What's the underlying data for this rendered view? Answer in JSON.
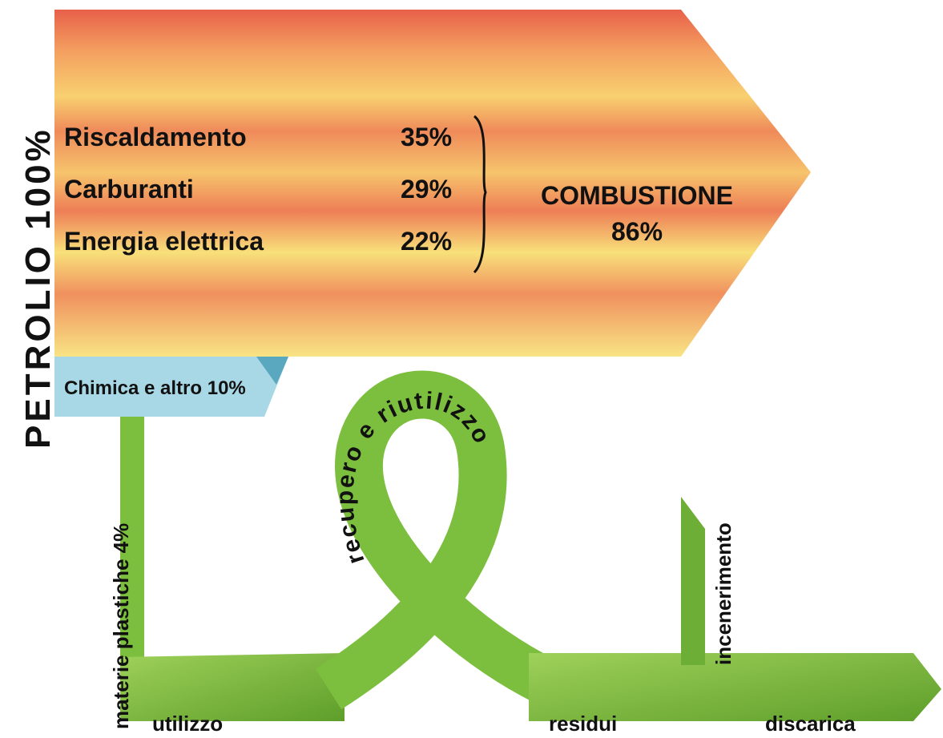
{
  "side_label": "PETROLIO 100%",
  "combustion": {
    "items": [
      {
        "label": "Riscaldamento",
        "percent": "35%"
      },
      {
        "label": "Carburanti",
        "percent": "29%"
      },
      {
        "label": "Energia elettrica",
        "percent": "22%"
      }
    ],
    "total_label": "COMBUSTIONE",
    "total_percent": "86%"
  },
  "chemistry": "Chimica e altro 10%",
  "plastics": "materie plastiche 4%",
  "loop": "recupero e riutilizzo",
  "flow": {
    "use": "utilizzo",
    "residues": "residui",
    "incineration": "incenerimento",
    "landfill": "discarica"
  }
}
